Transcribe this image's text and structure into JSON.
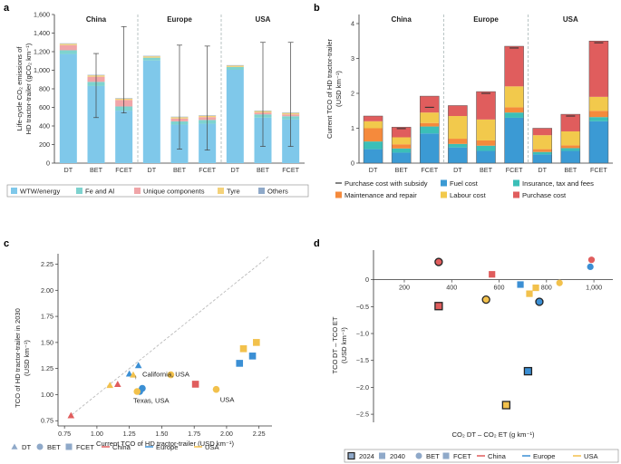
{
  "colors": {
    "wtw": "#7fc8ea",
    "fe_al": "#7ed3cf",
    "unique": "#f0a5a8",
    "tyre": "#f4d27a",
    "others": "#8fa9c9",
    "subsidy": "#333333",
    "fuel": "#3b9ad4",
    "insurance": "#3bbfb8",
    "maintenance": "#f58a3c",
    "labour": "#f2c94c",
    "purchase": "#e05d5d",
    "china": "#e05d5d",
    "europe": "#3b8fd4",
    "usa": "#f2c14c"
  },
  "panels": {
    "a": {
      "label": "a",
      "ylabel_lines": [
        "Life-cycle CO₂ emissions of",
        "HD tractor-trailer (gCO₂ km⁻¹)"
      ],
      "yticks": [
        "0",
        "200",
        "400",
        "600",
        "800",
        "1,000",
        "1,200",
        "1,400",
        "1,600"
      ],
      "xticks": [
        "DT",
        "BET",
        "FCET",
        "DT",
        "BET",
        "FCET",
        "DT",
        "BET",
        "FCET"
      ],
      "groups": [
        "China",
        "Europe",
        "USA"
      ],
      "legend": [
        "WTW/energy",
        "Fe and Al",
        "Unique components",
        "Tyre",
        "Others"
      ]
    },
    "b": {
      "label": "b",
      "ylabel_lines": [
        "Current TCO of HD tractor-trailer",
        "(USD km⁻¹)"
      ],
      "yticks": [
        "0",
        "1",
        "2",
        "3",
        "4"
      ],
      "xticks": [
        "DT",
        "BET",
        "FCET",
        "DT",
        "BET",
        "FCET",
        "DT",
        "BET",
        "FCET"
      ],
      "groups": [
        "China",
        "Europe",
        "USA"
      ],
      "legend": [
        "Purchase cost with subsidy",
        "Fuel cost",
        "Insurance, tax and fees",
        "Maintenance and repair",
        "Labour cost",
        "Purchase cost"
      ]
    },
    "c": {
      "label": "c",
      "ylabel_lines": [
        "TCO of HD tractor-trailer in 2030",
        "(USD km⁻¹)"
      ],
      "xlabel": "Current TCO of HD tractor-trailer (USD km⁻¹)",
      "xticks": [
        "0.75",
        "1.00",
        "1.25",
        "1.50",
        "1.75",
        "2.00",
        "2.25"
      ],
      "yticks": [
        "0.75",
        "1.00",
        "1.25",
        "1.50",
        "1.75",
        "2.00",
        "2.25"
      ],
      "annotations": [
        "California, USA",
        "Texas, USA",
        "USA"
      ],
      "legend": [
        "DT",
        "BET",
        "FCET",
        "China",
        "Europe",
        "USA"
      ]
    },
    "d": {
      "label": "d",
      "ylabel_lines": [
        "TCO DT – TCO ET",
        "(USD km⁻¹)"
      ],
      "xlabel": "CO₂ DT – CO₂ ET (g km⁻¹)",
      "xticks": [
        "200",
        "400",
        "600",
        "800",
        "1,000"
      ],
      "yticks": [
        "0",
        "−0.5",
        "−1.0",
        "−1.5",
        "−2.0",
        "−2.5"
      ],
      "legend": [
        "2024",
        "2040",
        "BET",
        "FCET",
        "China",
        "Europe",
        "USA"
      ]
    }
  },
  "chart_data": [
    {
      "id": "a",
      "type": "bar",
      "stacked": true,
      "ylim": [
        0,
        1600
      ],
      "categories": [
        "China DT",
        "China BET",
        "China FCET",
        "Europe DT",
        "Europe BET",
        "Europe FCET",
        "USA DT",
        "USA BET",
        "USA FCET"
      ],
      "series": [
        {
          "name": "WTW/energy",
          "values": [
            1175,
            830,
            565,
            1105,
            415,
            425,
            1005,
            490,
            470
          ]
        },
        {
          "name": "Fe and Al",
          "values": [
            40,
            45,
            45,
            30,
            35,
            40,
            30,
            35,
            35
          ]
        },
        {
          "name": "Unique components",
          "values": [
            55,
            55,
            70,
            0,
            30,
            30,
            0,
            20,
            20
          ]
        },
        {
          "name": "Tyre",
          "values": [
            15,
            15,
            15,
            15,
            15,
            15,
            15,
            15,
            15
          ]
        },
        {
          "name": "Others",
          "values": [
            5,
            5,
            5,
            5,
            5,
            5,
            5,
            5,
            5
          ]
        }
      ],
      "error_bars": [
        null,
        [
          490,
          1180
        ],
        [
          540,
          1470
        ],
        null,
        [
          150,
          1270
        ],
        [
          140,
          1260
        ],
        null,
        [
          180,
          1300
        ],
        [
          180,
          1300
        ]
      ]
    },
    {
      "id": "b",
      "type": "bar",
      "stacked": true,
      "ylim": [
        0,
        4
      ],
      "categories": [
        "China DT",
        "China BET",
        "China FCET",
        "Europe DT",
        "Europe BET",
        "Europe FCET",
        "USA DT",
        "USA BET",
        "USA FCET"
      ],
      "series": [
        {
          "name": "Fuel cost",
          "values": [
            0.4,
            0.3,
            0.85,
            0.45,
            0.35,
            1.3,
            0.25,
            0.35,
            1.2
          ]
        },
        {
          "name": "Insurance, tax and fees",
          "values": [
            0.22,
            0.12,
            0.2,
            0.1,
            0.15,
            0.15,
            0.07,
            0.08,
            0.12
          ]
        },
        {
          "name": "Maintenance and repair",
          "values": [
            0.38,
            0.12,
            0.1,
            0.15,
            0.15,
            0.15,
            0.08,
            0.08,
            0.18
          ]
        },
        {
          "name": "Labour cost",
          "values": [
            0.2,
            0.2,
            0.3,
            0.65,
            0.6,
            0.6,
            0.4,
            0.4,
            0.4
          ]
        },
        {
          "name": "Purchase cost",
          "values": [
            0.15,
            0.29,
            0.47,
            0.3,
            0.8,
            1.15,
            0.2,
            0.49,
            1.6
          ]
        }
      ],
      "subsidy_markers": [
        null,
        0.99,
        1.6,
        null,
        2.0,
        3.3,
        null,
        1.35,
        3.45
      ]
    },
    {
      "id": "c",
      "type": "scatter",
      "xlim": [
        0.7,
        2.35
      ],
      "ylim": [
        0.7,
        2.35
      ],
      "diagonal": true,
      "points": [
        {
          "vehicle": "DT",
          "region": "China",
          "x": 0.8,
          "y": 0.8
        },
        {
          "vehicle": "DT",
          "region": "Europe",
          "x": 1.32,
          "y": 1.28
        },
        {
          "vehicle": "DT",
          "region": "Europe",
          "x": 1.25,
          "y": 1.2
        },
        {
          "vehicle": "DT",
          "region": "China",
          "x": 1.16,
          "y": 1.1
        },
        {
          "vehicle": "DT",
          "region": "USA",
          "x": 1.1,
          "y": 1.09
        },
        {
          "vehicle": "DT",
          "region": "USA",
          "x": 1.28,
          "y": 1.19
        },
        {
          "vehicle": "BET",
          "region": "Europe",
          "x": 1.35,
          "y": 1.06
        },
        {
          "vehicle": "BET",
          "region": "Europe",
          "x": 1.33,
          "y": 1.03
        },
        {
          "vehicle": "BET",
          "region": "USA",
          "x": 1.31,
          "y": 1.03
        },
        {
          "vehicle": "BET",
          "region": "USA",
          "x": 1.57,
          "y": 1.19
        },
        {
          "vehicle": "BET",
          "region": "USA",
          "x": 1.92,
          "y": 1.05
        },
        {
          "vehicle": "FCET",
          "region": "China",
          "x": 1.76,
          "y": 1.1
        },
        {
          "vehicle": "FCET",
          "region": "Europe",
          "x": 2.1,
          "y": 1.3
        },
        {
          "vehicle": "FCET",
          "region": "Europe",
          "x": 2.2,
          "y": 1.37
        },
        {
          "vehicle": "FCET",
          "region": "USA",
          "x": 2.13,
          "y": 1.44
        },
        {
          "vehicle": "FCET",
          "region": "USA",
          "x": 2.23,
          "y": 1.5
        }
      ]
    },
    {
      "id": "d",
      "type": "scatter",
      "xlim": [
        70,
        1080
      ],
      "ylim": [
        -2.65,
        0.55
      ],
      "points": [
        {
          "vehicle": "BET",
          "region": "China",
          "year": "2024",
          "x": 345,
          "y": 0.33
        },
        {
          "vehicle": "FCET",
          "region": "China",
          "year": "2040",
          "x": 570,
          "y": 0.1
        },
        {
          "vehicle": "BET",
          "region": "China",
          "year": "2040",
          "x": 990,
          "y": 0.37
        },
        {
          "vehicle": "BET",
          "region": "Europe",
          "year": "2040",
          "x": 985,
          "y": 0.24
        },
        {
          "vehicle": "FCET",
          "region": "Europe",
          "year": "2040",
          "x": 690,
          "y": -0.09
        },
        {
          "vehicle": "BET",
          "region": "USA",
          "year": "2040",
          "x": 855,
          "y": -0.06
        },
        {
          "vehicle": "FCET",
          "region": "USA",
          "year": "2040",
          "x": 755,
          "y": -0.15
        },
        {
          "vehicle": "FCET",
          "region": "USA",
          "year": "2040",
          "x": 728,
          "y": -0.26
        },
        {
          "vehicle": "BET",
          "region": "USA",
          "year": "2024",
          "x": 545,
          "y": -0.37
        },
        {
          "vehicle": "BET",
          "region": "Europe",
          "year": "2024",
          "x": 770,
          "y": -0.41
        },
        {
          "vehicle": "FCET",
          "region": "China",
          "year": "2024",
          "x": 345,
          "y": -0.49
        },
        {
          "vehicle": "FCET",
          "region": "Europe",
          "year": "2024",
          "x": 722,
          "y": -1.7
        },
        {
          "vehicle": "FCET",
          "region": "USA",
          "year": "2024",
          "x": 630,
          "y": -2.33
        }
      ]
    }
  ]
}
